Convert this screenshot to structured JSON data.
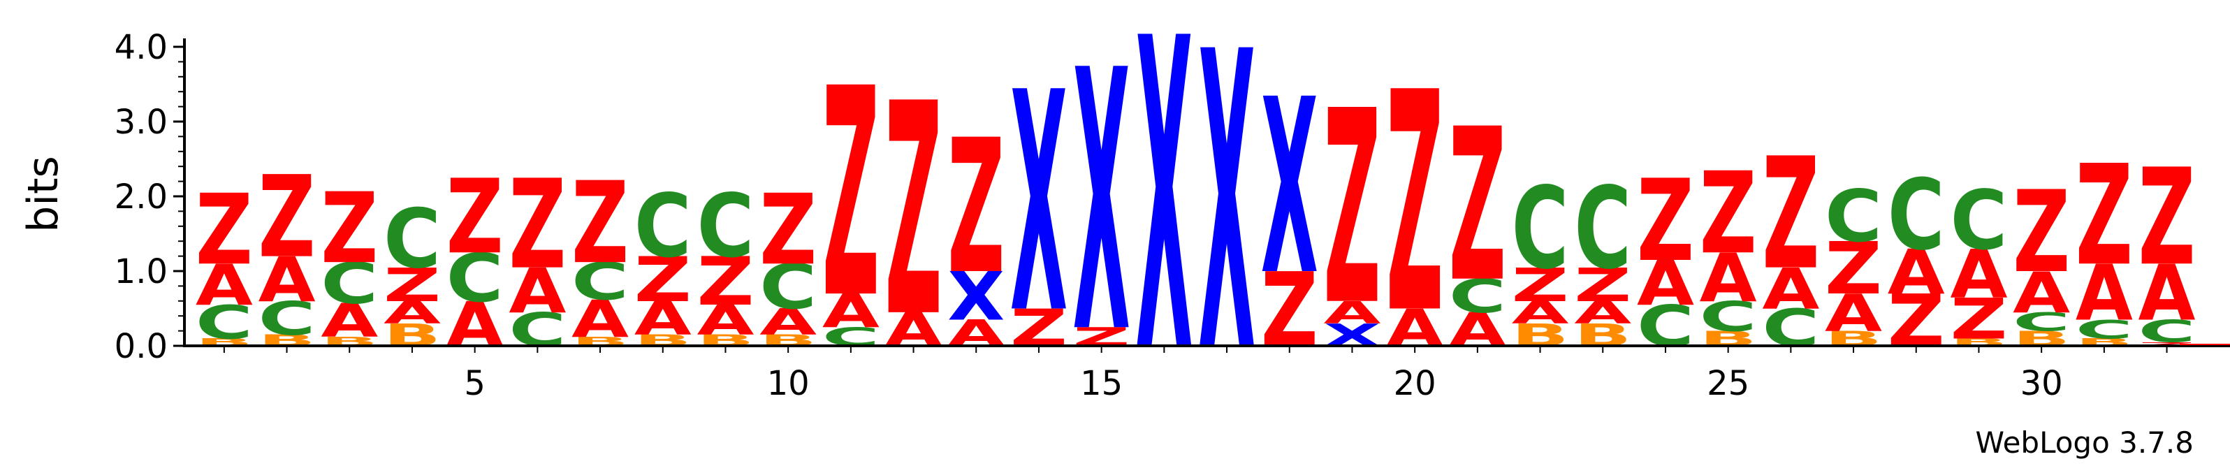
{
  "chart_data": {
    "type": "sequence_logo",
    "ylabel": "bits",
    "ylim": [
      0,
      4.0
    ],
    "y_ticks": [
      "0.0",
      "1.0",
      "2.0",
      "3.0",
      "4.0"
    ],
    "x_ticks": [
      "5",
      "10",
      "15",
      "20",
      "25",
      "30"
    ],
    "x_tick_positions": [
      5,
      10,
      15,
      20,
      25,
      30
    ],
    "credit": "WebLogo 3.7.8",
    "colors": {
      "Z": "#ff0000",
      "A": "#ff0000",
      "C": "#228b22",
      "X": "#0000ff",
      "B": "#ff8c00"
    },
    "positions": [
      {
        "pos": 1,
        "stack": [
          {
            "l": "B",
            "h": 0.1
          },
          {
            "l": "C",
            "h": 0.45
          },
          {
            "l": "A",
            "h": 0.55
          },
          {
            "l": "Z",
            "h": 0.95
          }
        ]
      },
      {
        "pos": 2,
        "stack": [
          {
            "l": "B",
            "h": 0.15
          },
          {
            "l": "C",
            "h": 0.45
          },
          {
            "l": "A",
            "h": 0.6
          },
          {
            "l": "Z",
            "h": 1.1
          }
        ]
      },
      {
        "pos": 3,
        "stack": [
          {
            "l": "B",
            "h": 0.12
          },
          {
            "l": "A",
            "h": 0.45
          },
          {
            "l": "C",
            "h": 0.55
          },
          {
            "l": "Z",
            "h": 0.95
          }
        ]
      },
      {
        "pos": 4,
        "stack": [
          {
            "l": "B",
            "h": 0.3
          },
          {
            "l": "A",
            "h": 0.3
          },
          {
            "l": "Z",
            "h": 0.45
          },
          {
            "l": "C",
            "h": 0.8
          }
        ]
      },
      {
        "pos": 5,
        "stack": [
          {
            "l": "A",
            "h": 0.6
          },
          {
            "l": "C",
            "h": 0.65
          },
          {
            "l": "Z",
            "h": 1.0
          }
        ]
      },
      {
        "pos": 6,
        "stack": [
          {
            "l": "C",
            "h": 0.45
          },
          {
            "l": "A",
            "h": 0.6
          },
          {
            "l": "Z",
            "h": 1.2
          }
        ]
      },
      {
        "pos": 7,
        "stack": [
          {
            "l": "B",
            "h": 0.12
          },
          {
            "l": "A",
            "h": 0.5
          },
          {
            "l": "C",
            "h": 0.5
          },
          {
            "l": "Z",
            "h": 1.1
          }
        ]
      },
      {
        "pos": 8,
        "stack": [
          {
            "l": "B",
            "h": 0.15
          },
          {
            "l": "A",
            "h": 0.45
          },
          {
            "l": "Z",
            "h": 0.6
          },
          {
            "l": "C",
            "h": 0.85
          }
        ]
      },
      {
        "pos": 9,
        "stack": [
          {
            "l": "B",
            "h": 0.15
          },
          {
            "l": "A",
            "h": 0.4
          },
          {
            "l": "Z",
            "h": 0.65
          },
          {
            "l": "C",
            "h": 0.85
          }
        ]
      },
      {
        "pos": 10,
        "stack": [
          {
            "l": "B",
            "h": 0.15
          },
          {
            "l": "A",
            "h": 0.35
          },
          {
            "l": "C",
            "h": 0.6
          },
          {
            "l": "Z",
            "h": 0.95
          }
        ]
      },
      {
        "pos": 11,
        "stack": [
          {
            "l": "C",
            "h": 0.25
          },
          {
            "l": "A",
            "h": 0.45
          },
          {
            "l": "Z",
            "h": 2.8
          }
        ]
      },
      {
        "pos": 12,
        "stack": [
          {
            "l": "A",
            "h": 0.45
          },
          {
            "l": "Z",
            "h": 2.85
          }
        ]
      },
      {
        "pos": 13,
        "stack": [
          {
            "l": "A",
            "h": 0.35
          },
          {
            "l": "X",
            "h": 0.65
          },
          {
            "l": "Z",
            "h": 1.8
          }
        ]
      },
      {
        "pos": 14,
        "stack": [
          {
            "l": "Z",
            "h": 0.5
          },
          {
            "l": "X",
            "h": 2.95
          }
        ]
      },
      {
        "pos": 15,
        "stack": [
          {
            "l": "Z",
            "h": 0.25
          },
          {
            "l": "X",
            "h": 3.5
          }
        ]
      },
      {
        "pos": 16,
        "stack": [
          {
            "l": "X",
            "h": 4.18
          }
        ]
      },
      {
        "pos": 17,
        "stack": [
          {
            "l": "X",
            "h": 4.0
          }
        ]
      },
      {
        "pos": 18,
        "stack": [
          {
            "l": "Z",
            "h": 1.0
          },
          {
            "l": "X",
            "h": 2.35
          }
        ]
      },
      {
        "pos": 19,
        "stack": [
          {
            "l": "X",
            "h": 0.3
          },
          {
            "l": "A",
            "h": 0.3
          },
          {
            "l": "Z",
            "h": 2.6
          }
        ]
      },
      {
        "pos": 20,
        "stack": [
          {
            "l": "A",
            "h": 0.5
          },
          {
            "l": "Z",
            "h": 2.95
          }
        ]
      },
      {
        "pos": 21,
        "stack": [
          {
            "l": "A",
            "h": 0.45
          },
          {
            "l": "C",
            "h": 0.45
          },
          {
            "l": "Z",
            "h": 2.05
          }
        ]
      },
      {
        "pos": 22,
        "stack": [
          {
            "l": "B",
            "h": 0.3
          },
          {
            "l": "A",
            "h": 0.3
          },
          {
            "l": "Z",
            "h": 0.45
          },
          {
            "l": "C",
            "h": 1.1
          }
        ]
      },
      {
        "pos": 23,
        "stack": [
          {
            "l": "B",
            "h": 0.3
          },
          {
            "l": "A",
            "h": 0.3
          },
          {
            "l": "Z",
            "h": 0.45
          },
          {
            "l": "C",
            "h": 1.1
          }
        ]
      },
      {
        "pos": 24,
        "stack": [
          {
            "l": "C",
            "h": 0.55
          },
          {
            "l": "A",
            "h": 0.6
          },
          {
            "l": "Z",
            "h": 1.1
          }
        ]
      },
      {
        "pos": 25,
        "stack": [
          {
            "l": "B",
            "h": 0.2
          },
          {
            "l": "C",
            "h": 0.4
          },
          {
            "l": "A",
            "h": 0.65
          },
          {
            "l": "Z",
            "h": 1.1
          }
        ]
      },
      {
        "pos": 26,
        "stack": [
          {
            "l": "C",
            "h": 0.5
          },
          {
            "l": "A",
            "h": 0.55
          },
          {
            "l": "Z",
            "h": 1.5
          }
        ]
      },
      {
        "pos": 27,
        "stack": [
          {
            "l": "B",
            "h": 0.2
          },
          {
            "l": "A",
            "h": 0.5
          },
          {
            "l": "Z",
            "h": 0.7
          },
          {
            "l": "C",
            "h": 0.7
          }
        ]
      },
      {
        "pos": 28,
        "stack": [
          {
            "l": "Z",
            "h": 0.7
          },
          {
            "l": "A",
            "h": 0.6
          },
          {
            "l": "C",
            "h": 0.95
          }
        ]
      },
      {
        "pos": 29,
        "stack": [
          {
            "l": "B",
            "h": 0.1
          },
          {
            "l": "Z",
            "h": 0.55
          },
          {
            "l": "A",
            "h": 0.65
          },
          {
            "l": "C",
            "h": 0.8
          }
        ]
      },
      {
        "pos": 30,
        "stack": [
          {
            "l": "B",
            "h": 0.2
          },
          {
            "l": "C",
            "h": 0.25
          },
          {
            "l": "A",
            "h": 0.55
          },
          {
            "l": "Z",
            "h": 1.1
          }
        ]
      },
      {
        "pos": 31,
        "stack": [
          {
            "l": "B",
            "h": 0.1
          },
          {
            "l": "C",
            "h": 0.25
          },
          {
            "l": "A",
            "h": 0.75
          },
          {
            "l": "Z",
            "h": 1.35
          }
        ]
      },
      {
        "pos": 32,
        "stack": [
          {
            "l": "Z",
            "h": 0.05
          },
          {
            "l": "C",
            "h": 0.3
          },
          {
            "l": "A",
            "h": 0.75
          },
          {
            "l": "Z",
            "h": 1.3
          }
        ]
      }
    ]
  }
}
